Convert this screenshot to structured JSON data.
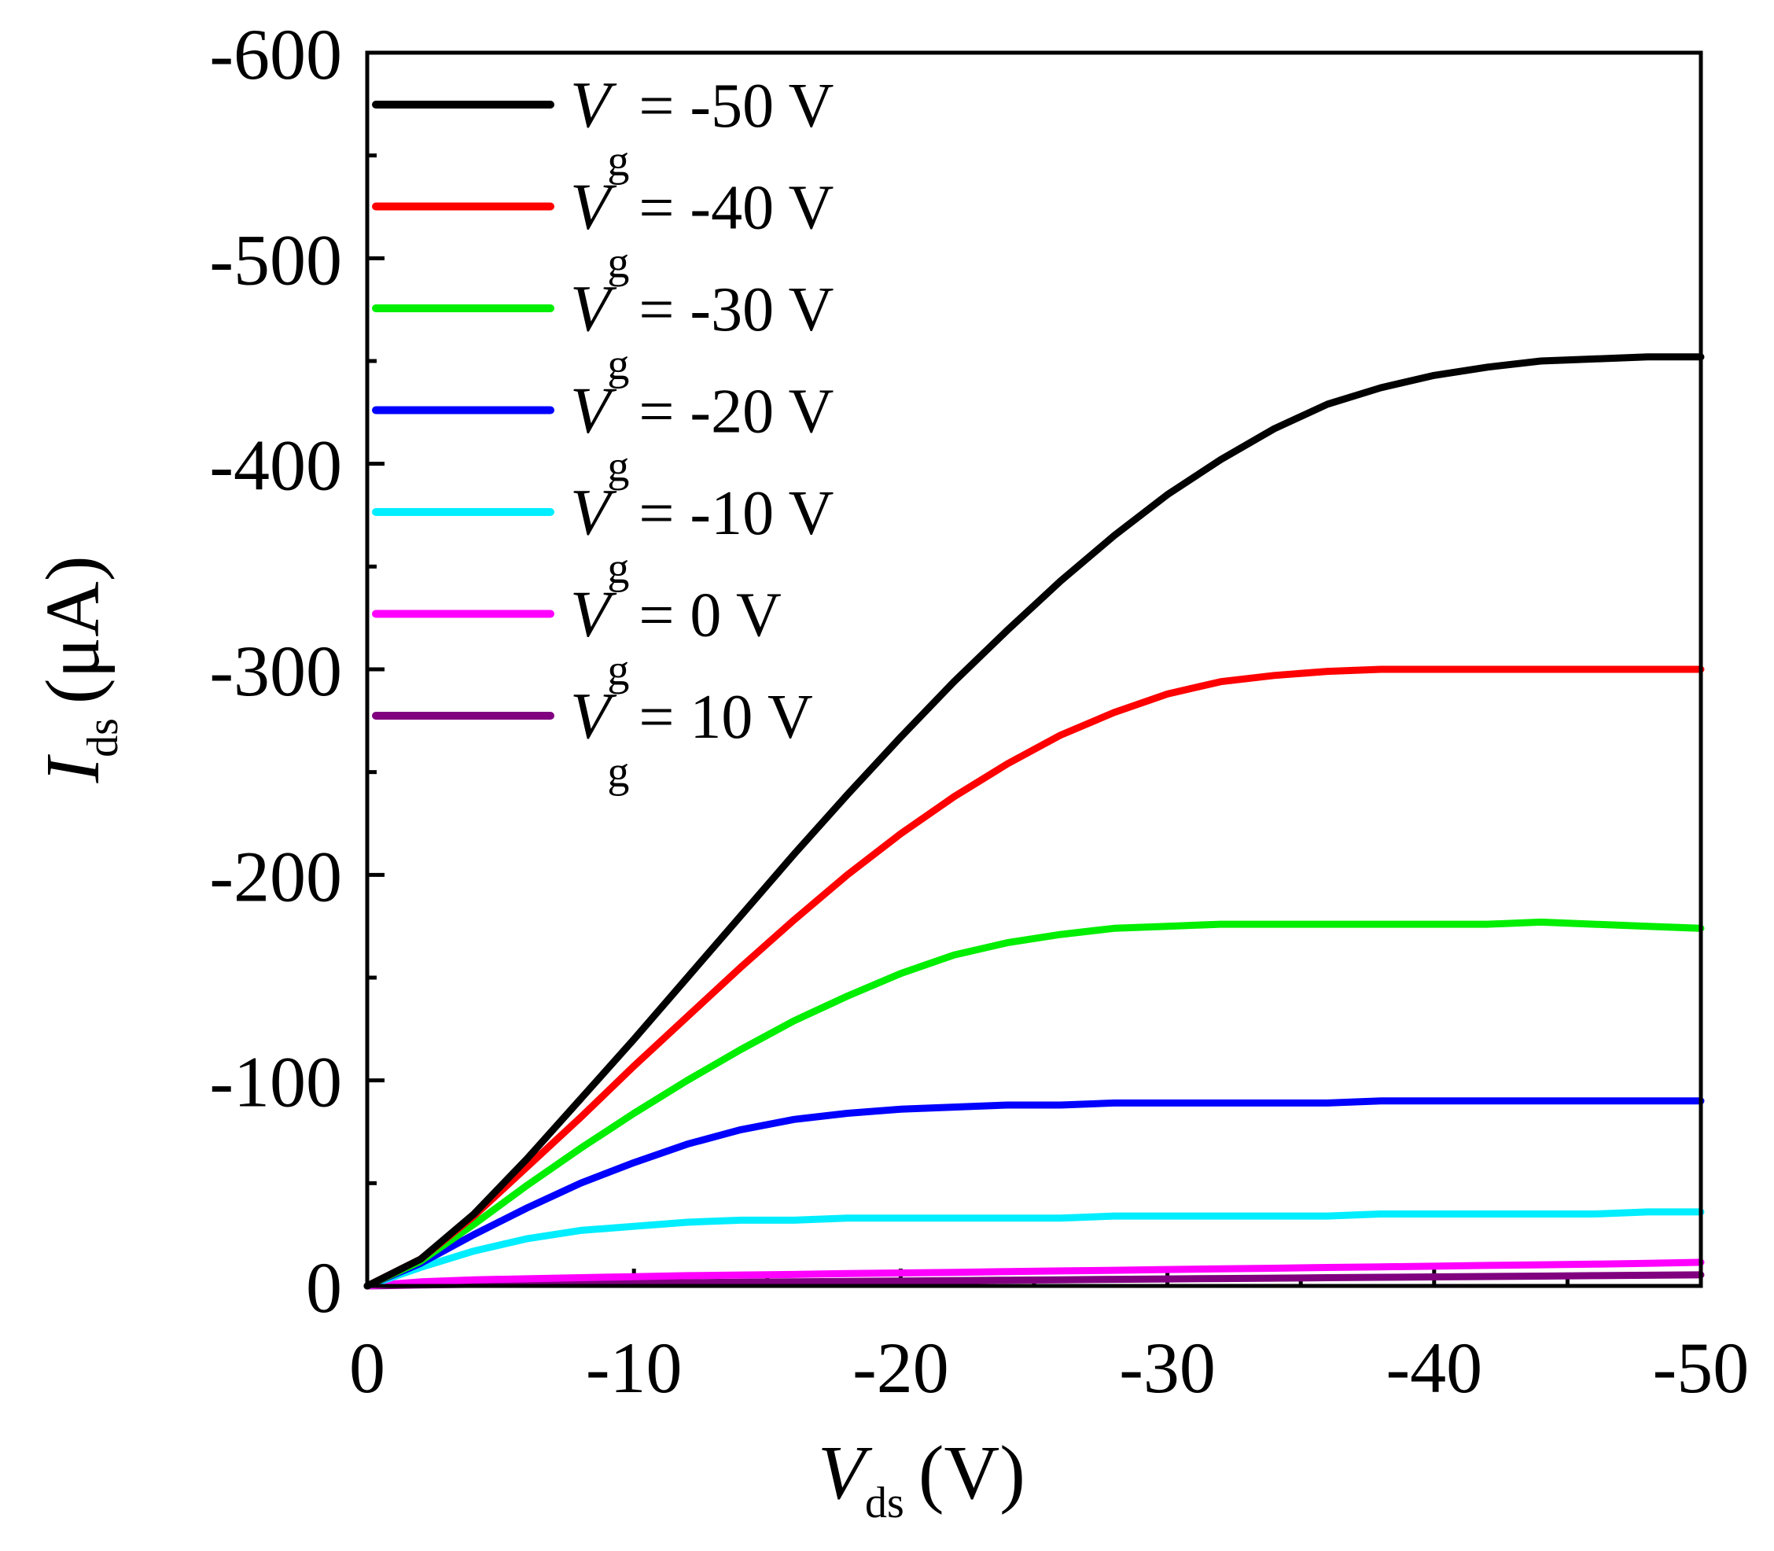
{
  "chart_data": {
    "type": "line",
    "title": "",
    "x_label_main": "V",
    "x_label_sub": "ds",
    "x_label_unit": "(V)",
    "y_label_main": "I",
    "y_label_sub": "ds",
    "y_label_unit": "(μA)",
    "xlim": [
      0,
      -50
    ],
    "ylim": [
      0,
      -600
    ],
    "x_ticks": [
      0,
      -10,
      -20,
      -30,
      -40,
      -50
    ],
    "x_tick_labels": [
      "0",
      "-10",
      "-20",
      "-30",
      "-40",
      "-50"
    ],
    "y_ticks": [
      0,
      -100,
      -200,
      -300,
      -400,
      -500,
      -600
    ],
    "y_tick_labels": [
      "0",
      "-100",
      "-200",
      "-300",
      "-400",
      "-500",
      "-600"
    ],
    "legend_position": "top-left",
    "legend_var_main": "V",
    "legend_var_sub": "g",
    "x": [
      0,
      -2,
      -4,
      -6,
      -8,
      -10,
      -12,
      -14,
      -16,
      -18,
      -20,
      -22,
      -24,
      -26,
      -28,
      -30,
      -32,
      -34,
      -36,
      -38,
      -40,
      -42,
      -44,
      -46,
      -48,
      -50
    ],
    "series": [
      {
        "name": "Vg = -50 V",
        "legend_value": "= -50 V",
        "color": "#000000",
        "values": [
          0,
          -13,
          -35,
          -62,
          -91,
          -120,
          -150,
          -180,
          -210,
          -239,
          -267,
          -294,
          -319,
          -343,
          -365,
          -385,
          -402,
          -417,
          -429,
          -437,
          -443,
          -447,
          -450,
          -451,
          -452,
          -452
        ]
      },
      {
        "name": "Vg = -40 V",
        "legend_value": "= -40 V",
        "color": "#ff0000",
        "values": [
          0,
          -13,
          -34,
          -58,
          -82,
          -107,
          -131,
          -155,
          -178,
          -200,
          -220,
          -238,
          -254,
          -268,
          -279,
          -288,
          -294,
          -297,
          -299,
          -300,
          -300,
          -300,
          -300,
          -300,
          -300,
          -300
        ]
      },
      {
        "name": "Vg = -30 V",
        "legend_value": "= -30 V",
        "color": "#00ee00",
        "values": [
          0,
          -12,
          -30,
          -49,
          -67,
          -84,
          -100,
          -115,
          -129,
          -141,
          -152,
          -161,
          -167,
          -171,
          -174,
          -175,
          -176,
          -176,
          -176,
          -176,
          -176,
          -176,
          -177,
          -176,
          -175,
          -174
        ]
      },
      {
        "name": "Vg = -20 V",
        "legend_value": "= -20 V",
        "color": "#0000ff",
        "values": [
          0,
          -11,
          -25,
          -38,
          -50,
          -60,
          -69,
          -76,
          -81,
          -84,
          -86,
          -87,
          -88,
          -88,
          -89,
          -89,
          -89,
          -89,
          -89,
          -90,
          -90,
          -90,
          -90,
          -90,
          -90,
          -90
        ]
      },
      {
        "name": "Vg = -10 V",
        "legend_value": "= -10 V",
        "color": "#00eeff",
        "values": [
          0,
          -9,
          -17,
          -23,
          -27,
          -29,
          -31,
          -32,
          -32,
          -33,
          -33,
          -33,
          -33,
          -33,
          -34,
          -34,
          -34,
          -34,
          -34,
          -35,
          -35,
          -35,
          -35,
          -35,
          -36,
          -36
        ]
      },
      {
        "name": "Vg = 0 V",
        "legend_value": "= 0 V",
        "color": "#ff00ff",
        "values": [
          0,
          -2,
          -3,
          -3.5,
          -4,
          -4.5,
          -5,
          -5.3,
          -5.6,
          -6,
          -6.3,
          -6.6,
          -7,
          -7.3,
          -7.6,
          -8,
          -8.3,
          -8.6,
          -9,
          -9.3,
          -9.6,
          -10,
          -10.3,
          -10.6,
          -11,
          -11.5
        ]
      },
      {
        "name": "Vg = 10 V",
        "legend_value": "= 10 V",
        "color": "#800080",
        "values": [
          0,
          -0.5,
          -0.8,
          -1,
          -1.2,
          -1.4,
          -1.6,
          -1.8,
          -2,
          -2.2,
          -2.4,
          -2.6,
          -2.8,
          -3,
          -3.2,
          -3.4,
          -3.6,
          -3.8,
          -4,
          -4.2,
          -4.4,
          -4.6,
          -4.8,
          -5,
          -5.2,
          -5.4
        ]
      }
    ]
  }
}
